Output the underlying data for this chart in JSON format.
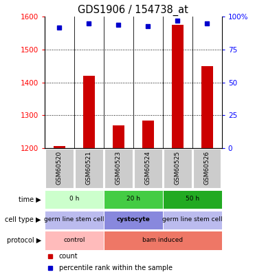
{
  "title": "GDS1906 / 154738_at",
  "samples": [
    "GSM60520",
    "GSM60521",
    "GSM60523",
    "GSM60524",
    "GSM60525",
    "GSM60526"
  ],
  "counts": [
    1207,
    1420,
    1270,
    1283,
    1575,
    1450
  ],
  "percentile_ranks": [
    92,
    95,
    94,
    93,
    97,
    95
  ],
  "ylim_left": [
    1200,
    1600
  ],
  "ylim_right": [
    0,
    100
  ],
  "yticks_left": [
    1200,
    1300,
    1400,
    1500,
    1600
  ],
  "yticks_right": [
    0,
    25,
    50,
    75,
    100
  ],
  "ytick_labels_right": [
    "0",
    "25",
    "50",
    "75",
    "100%"
  ],
  "bar_color": "#cc0000",
  "dot_color": "#0000cc",
  "time_groups": [
    {
      "label": "0 h",
      "start": 0,
      "end": 2,
      "color": "#ccffcc"
    },
    {
      "label": "20 h",
      "start": 2,
      "end": 4,
      "color": "#44cc44"
    },
    {
      "label": "50 h",
      "start": 4,
      "end": 6,
      "color": "#22aa22"
    }
  ],
  "cell_type_groups": [
    {
      "label": "germ line stem cell",
      "start": 0,
      "end": 2,
      "color": "#bbbbee"
    },
    {
      "label": "cystocyte",
      "start": 2,
      "end": 4,
      "color": "#8888dd"
    },
    {
      "label": "germ line stem cell",
      "start": 4,
      "end": 6,
      "color": "#bbbbee"
    }
  ],
  "protocol_groups": [
    {
      "label": "control",
      "start": 0,
      "end": 2,
      "color": "#ffbbbb"
    },
    {
      "label": "bam induced",
      "start": 2,
      "end": 6,
      "color": "#ee7766"
    }
  ],
  "legend_items": [
    {
      "label": "count",
      "color": "#cc0000"
    },
    {
      "label": "percentile rank within the sample",
      "color": "#0000cc"
    }
  ]
}
